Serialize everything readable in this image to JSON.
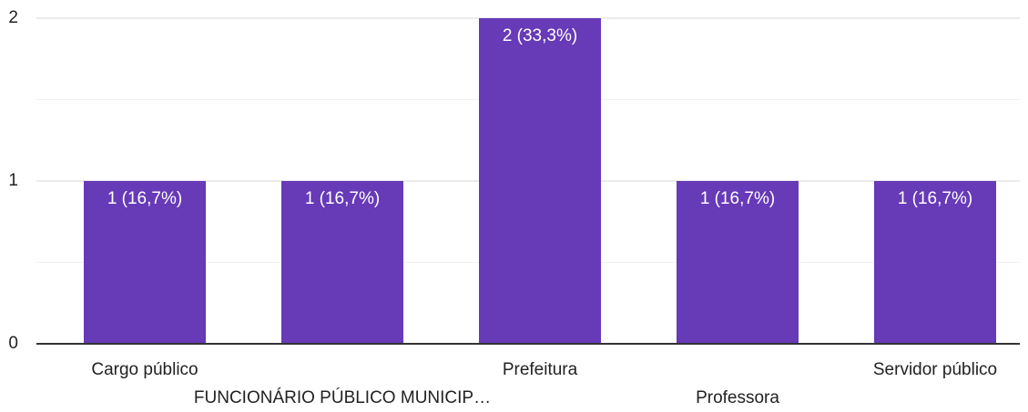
{
  "chart_data": {
    "type": "bar",
    "categories": [
      "Cargo público",
      "FUNCIONÁRIO PÚBLICO MUNICIP…",
      "Prefeitura",
      "Professora",
      "Servidor público"
    ],
    "values": [
      1,
      1,
      2,
      1,
      1
    ],
    "value_labels": [
      "1 (16,7%)",
      "1 (16,7%)",
      "2 (33,3%)",
      "1 (16,7%)",
      "1 (16,7%)"
    ],
    "color": "#673ab7",
    "ylim": [
      0,
      2
    ],
    "yticks": [
      0,
      1,
      2
    ],
    "grid": true
  }
}
